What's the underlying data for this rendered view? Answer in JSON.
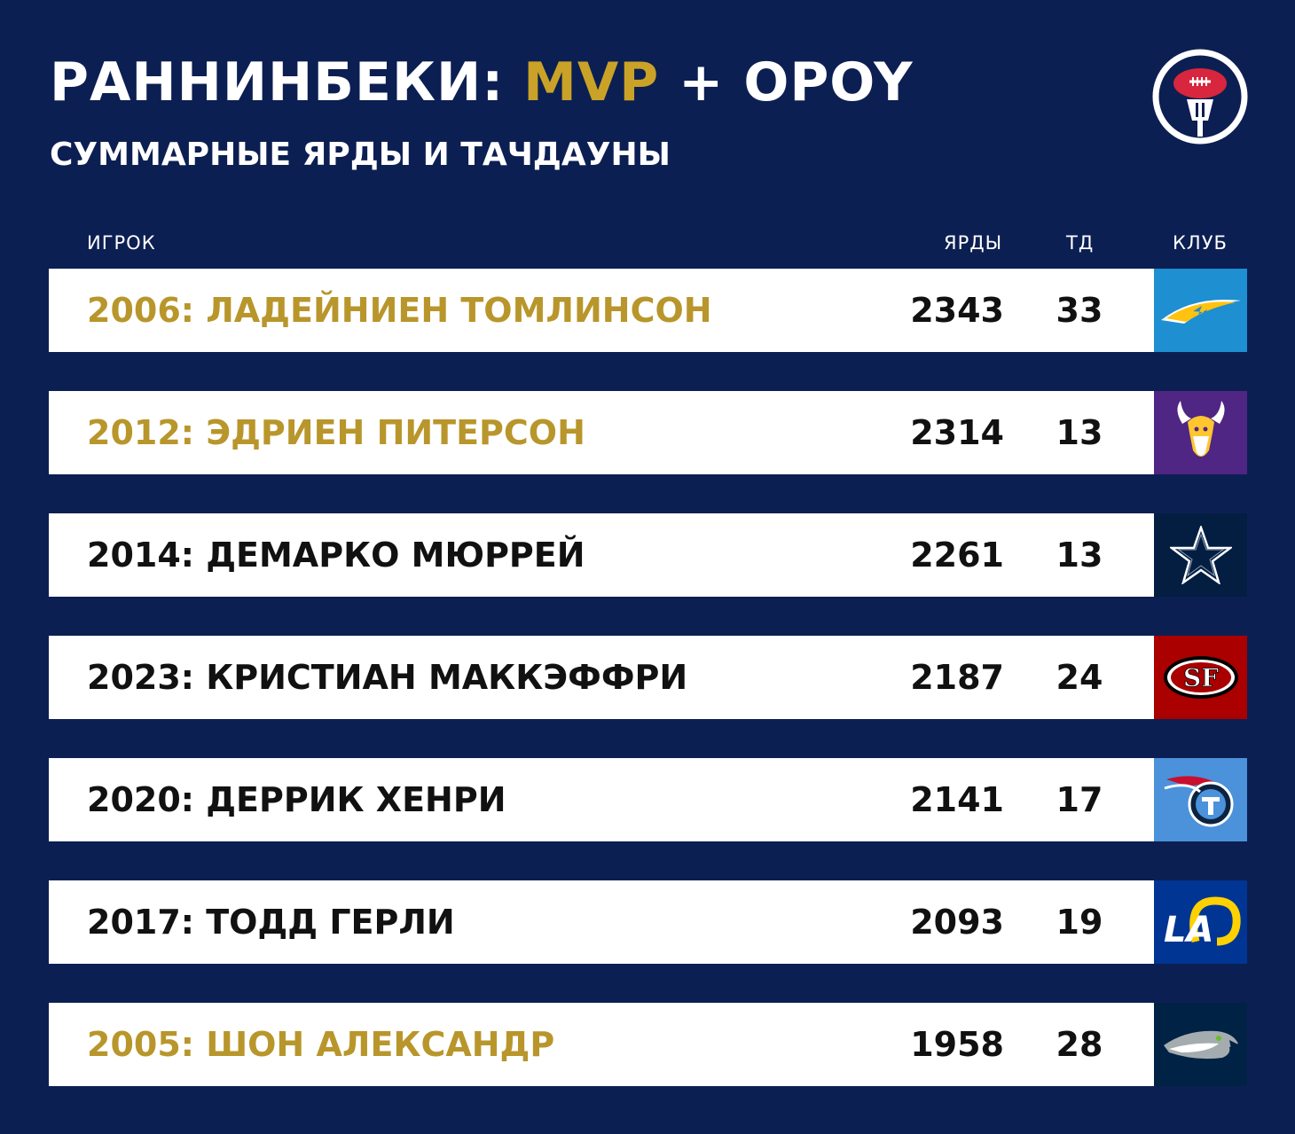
{
  "header": {
    "title_main": "РАННИНБЕКИ: ",
    "title_accent": "MVP",
    "title_rest": " + OPOY",
    "subtitle": "СУММАРНЫЕ ЯРДЫ И ТАЧДАУНЫ"
  },
  "columns": {
    "player": "ИГРОК",
    "yards": "ЯРДЫ",
    "td": "ТД",
    "club": "КЛУБ"
  },
  "colors": {
    "background": "#0c1f52",
    "gold": "#b8962b",
    "chargers": "#1e8fd0",
    "vikings": "#4f2683",
    "cowboys": "#041e42",
    "niners": "#aa0000",
    "titans": "#4b92db",
    "rams": "#003594",
    "seahawks": "#002244"
  },
  "rows": [
    {
      "player": "2006: ЛАДЕЙНИЕН ТОМЛИНСОН",
      "yards": "2343",
      "td": "33",
      "club_icon": "chargers-logo-icon",
      "highlight": true
    },
    {
      "player": "2012: ЭДРИЕН ПИТЕРСОН",
      "yards": "2314",
      "td": "13",
      "club_icon": "vikings-logo-icon",
      "highlight": true
    },
    {
      "player": "2014: ДЕМАРКО МЮРРЕЙ",
      "yards": "2261",
      "td": "13",
      "club_icon": "cowboys-logo-icon",
      "highlight": false
    },
    {
      "player": "2023: КРИСТИАН МАККЭФФРИ",
      "yards": "2187",
      "td": "24",
      "club_icon": "49ers-logo-icon",
      "highlight": false
    },
    {
      "player": "2020: ДЕРРИК ХЕНРИ",
      "yards": "2141",
      "td": "17",
      "club_icon": "titans-logo-icon",
      "highlight": false
    },
    {
      "player": "2017: ТОДД ГЕРЛИ",
      "yards": "2093",
      "td": "19",
      "club_icon": "rams-logo-icon",
      "highlight": false
    },
    {
      "player": "2005: ШОН АЛЕКСАНДР",
      "yards": "1958",
      "td": "28",
      "club_icon": "seahawks-logo-icon",
      "highlight": true
    }
  ]
}
